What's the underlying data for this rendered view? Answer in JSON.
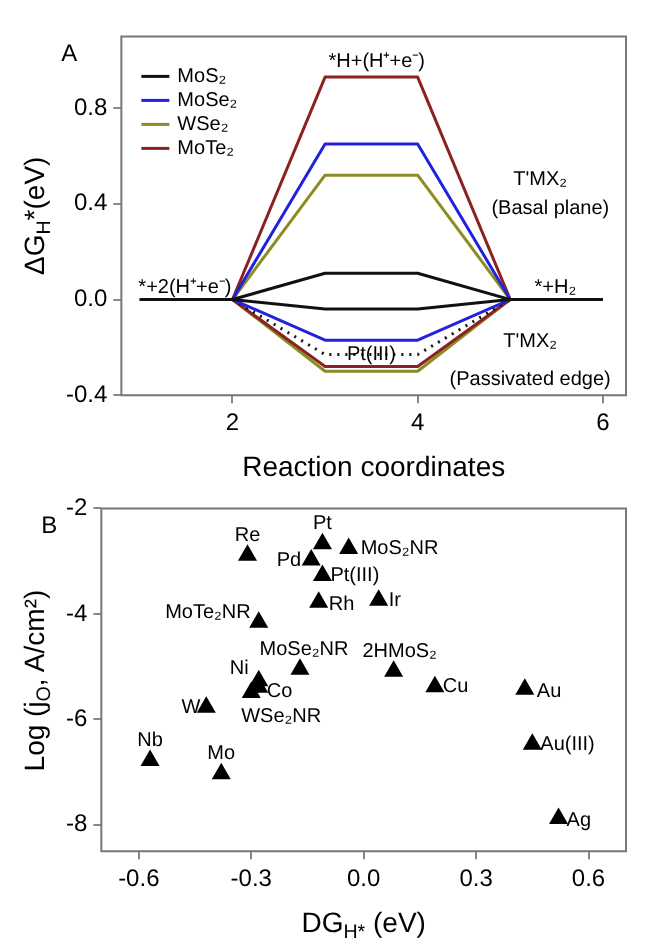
{
  "chart_data": [
    {
      "type": "line",
      "title": "A",
      "xlabel": "Reaction coordinates",
      "ylabel": "ΔG$_{H}$*(eV)",
      "xlim": [
        0.8,
        6.25
      ],
      "ylim": [
        -0.4,
        1.1
      ],
      "xticks": [
        2,
        4,
        6
      ],
      "yticks": [
        {
          "value": -0.4,
          "label": "-0.4"
        },
        {
          "value": 0,
          "label": "0.0"
        },
        0.4,
        0.8
      ],
      "grid": false,
      "legend": "top left",
      "marker": "none",
      "line_style": "solid",
      "series": [
        {
          "name": "MoS₂",
          "color": "#111111",
          "x": [
            1,
            2,
            3,
            4,
            5,
            6
          ],
          "values": [
            0,
            0,
            0.11,
            0.11,
            0,
            0
          ]
        },
        {
          "name": "MoSe₂",
          "color": "#2222dd",
          "x": [
            1,
            2,
            3,
            4,
            5,
            6
          ],
          "values": [
            0,
            0,
            0.65,
            0.65,
            0,
            0
          ]
        },
        {
          "name": "WSe₂",
          "color": "#8c8c22",
          "x": [
            1,
            2,
            3,
            4,
            5,
            6
          ],
          "values": [
            0,
            0,
            0.52,
            0.52,
            0,
            0
          ]
        },
        {
          "name": "MoTe₂",
          "color": "#8b2222",
          "x": [
            1,
            2,
            3,
            4,
            5,
            6
          ],
          "values": [
            0,
            0,
            0.93,
            0.93,
            0,
            0
          ]
        },
        {
          "color": "#111111",
          "x": [
            1,
            2,
            3,
            4,
            5,
            6
          ],
          "values": [
            0,
            0,
            -0.04,
            -0.04,
            0,
            0
          ]
        },
        {
          "color": "#2222dd",
          "x": [
            1,
            2,
            3,
            4,
            5,
            6
          ],
          "values": [
            0,
            0,
            -0.17,
            -0.17,
            0,
            0
          ]
        },
        {
          "color": "#111111",
          "line_style": "dotted",
          "x": [
            2,
            3,
            4,
            5
          ],
          "values": [
            0,
            -0.23,
            -0.23,
            0
          ]
        },
        {
          "color": "#8b2222",
          "x": [
            1,
            2,
            3,
            4,
            5,
            6
          ],
          "values": [
            0,
            0,
            -0.28,
            -0.28,
            0,
            0
          ]
        },
        {
          "color": "#8c8c22",
          "x": [
            1,
            2,
            3,
            4,
            5,
            6
          ],
          "values": [
            0,
            0,
            -0.3,
            -0.3,
            0,
            0
          ]
        }
      ],
      "annotations": [
        "*H+(H⁺+e⁻)",
        "*+2(H⁺+e⁻)",
        "*+H₂",
        "T'MX₂",
        "(Basal plane)",
        "T'MX₂",
        "(Passivated edge)",
        {
          "text": "Pt(III)",
          "x": 3.5,
          "y": -0.23
        }
      ]
    },
    {
      "type": "scatter",
      "title": "B",
      "xlabel": "DG$_{H*}$ (eV)",
      "ylabel": "Log (j$_{O}$, A/cm²)",
      "xlim": [
        -0.7,
        0.7
      ],
      "ylim": [
        -8.5,
        -2
      ],
      "xticks": [
        -0.6,
        -0.3,
        {
          "value": 0,
          "label": "0.0"
        },
        0.3,
        0.6
      ],
      "yticks": [
        -8,
        -6,
        -4,
        -2
      ],
      "grid": false,
      "legend": false,
      "marker": "triangle",
      "series": [
        {
          "color": "#000000",
          "x": [
            -0.31,
            -0.11,
            -0.04,
            -0.14,
            -0.11,
            -0.12,
            0.04,
            -0.28,
            -0.17,
            0.08,
            -0.28,
            -0.28,
            -0.3,
            0.19,
            0.43,
            -0.42,
            -0.57,
            -0.38,
            0.45,
            0.52
          ],
          "values": [
            -2.89,
            -2.67,
            -2.76,
            -2.98,
            -3.27,
            -3.78,
            -3.74,
            -4.16,
            -5.05,
            -5.09,
            -5.27,
            -5.39,
            -5.49,
            -5.38,
            -5.43,
            -5.77,
            -6.78,
            -7.03,
            -6.47,
            -7.88
          ]
        }
      ],
      "annotations": [
        {
          "text": "Re",
          "x": -0.31,
          "y": -2.89
        },
        {
          "text": "Pt",
          "x": -0.11,
          "y": -2.67
        },
        {
          "text": "MoS₂NR",
          "x": -0.04,
          "y": -2.76
        },
        {
          "text": "Pd",
          "x": -0.14,
          "y": -2.98
        },
        {
          "text": "Pt(III)",
          "x": -0.11,
          "y": -3.27
        },
        {
          "text": "Rh",
          "x": -0.12,
          "y": -3.78
        },
        {
          "text": "Ir",
          "x": 0.04,
          "y": -3.74
        },
        {
          "text": "MoTe₂NR",
          "x": -0.28,
          "y": -4.16
        },
        {
          "text": "MoSe₂NR",
          "x": -0.17,
          "y": -5.05
        },
        {
          "text": "2HMoS₂",
          "x": 0.08,
          "y": -5.09
        },
        {
          "text": "Ni",
          "x": -0.28,
          "y": -5.27
        },
        {
          "text": "Co",
          "x": -0.28,
          "y": -5.39
        },
        {
          "text": "WSe₂NR",
          "x": -0.3,
          "y": -5.49
        },
        {
          "text": "Cu",
          "x": 0.19,
          "y": -5.38
        },
        {
          "text": "Au",
          "x": 0.43,
          "y": -5.43
        },
        {
          "text": "W",
          "x": -0.42,
          "y": -5.77
        },
        {
          "text": "Nb",
          "x": -0.57,
          "y": -6.78
        },
        {
          "text": "Mo",
          "x": -0.38,
          "y": -7.03
        },
        {
          "text": "Au(III)",
          "x": 0.45,
          "y": -6.47
        },
        {
          "text": "Ag",
          "x": 0.52,
          "y": -7.88
        }
      ]
    }
  ]
}
